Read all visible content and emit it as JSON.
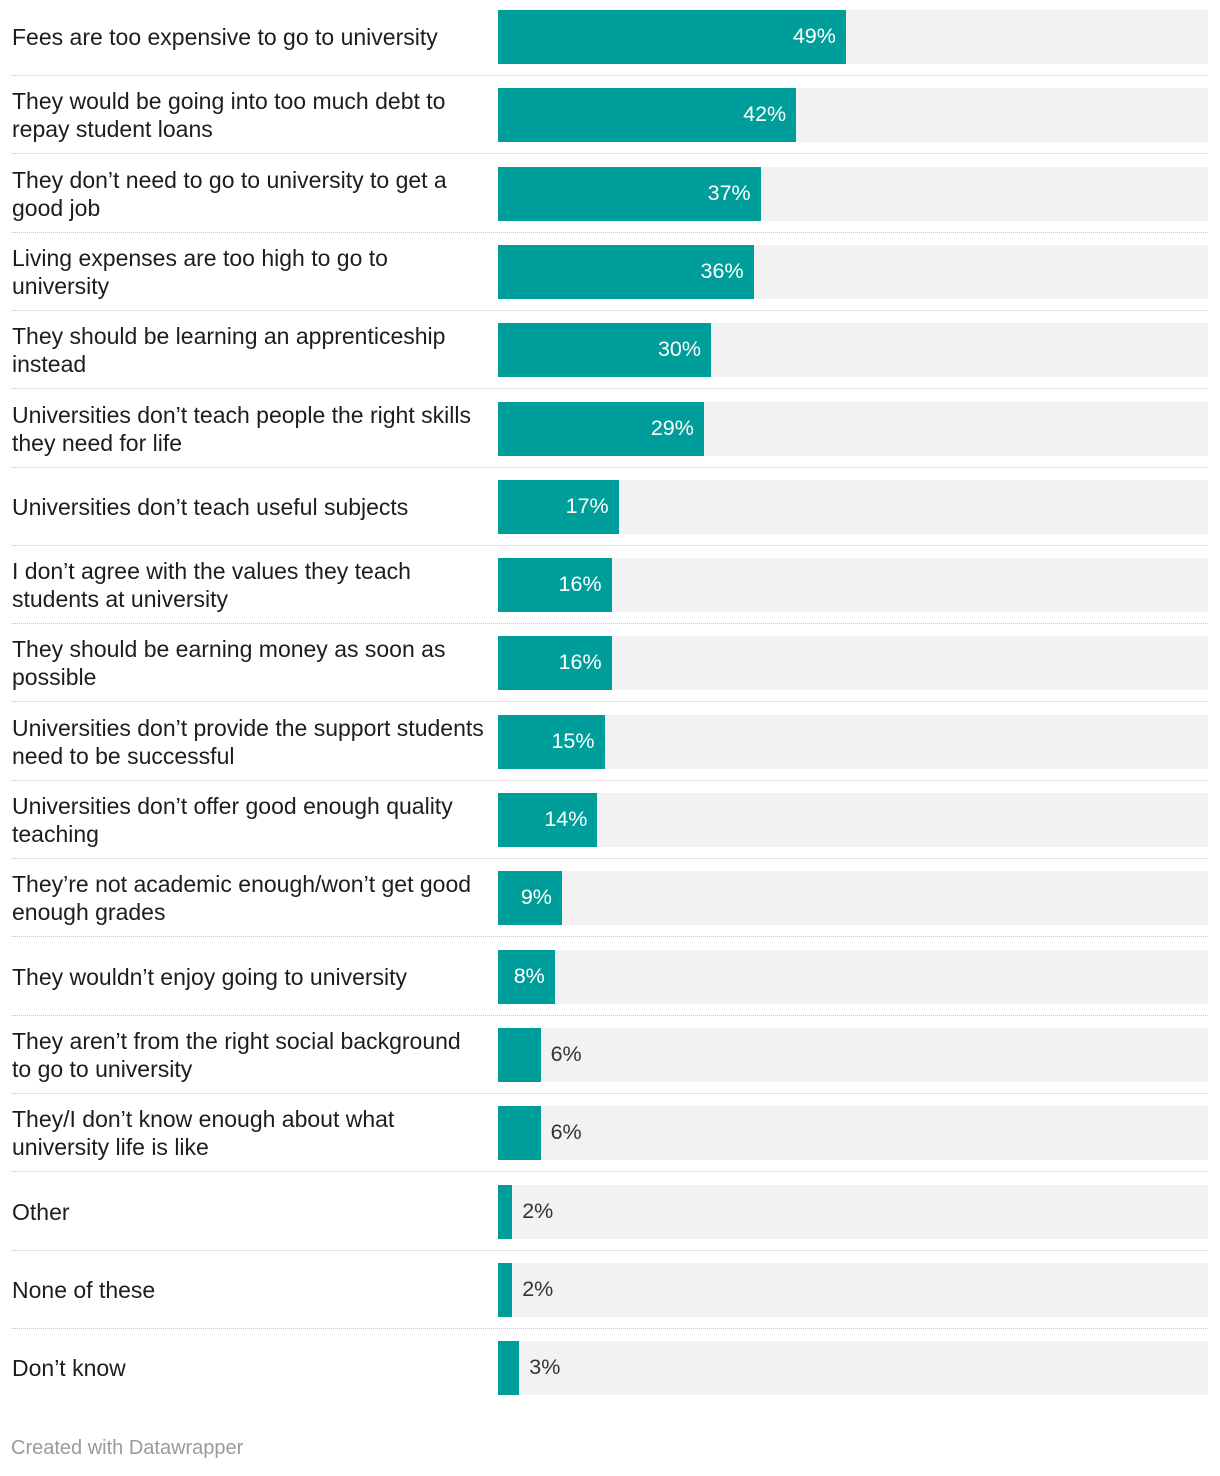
{
  "chart_data": {
    "type": "bar",
    "orientation": "horizontal",
    "categories": [
      "Fees are too expensive to go to university",
      "They would be going into too much debt to repay student loans",
      "They don’t need to go to university to get a good job",
      "Living expenses are too high to go to university",
      "They should be learning an apprenticeship instead",
      "Universities don’t teach people the right skills they need for life",
      "Universities don’t teach useful subjects",
      "I don’t agree with the values they teach students at university",
      "They should be earning money as soon as possible",
      "Universities don’t provide the support students need to be successful",
      "Universities don’t offer good enough quality teaching",
      "They’re not academic enough/won’t get good enough grades",
      "They wouldn’t enjoy going to university",
      "They aren’t from the right social background to go to university",
      "They/I don’t know enough about what university life is like",
      "Other",
      "None of these",
      "Don’t know"
    ],
    "values": [
      49,
      42,
      37,
      36,
      30,
      29,
      17,
      16,
      16,
      15,
      14,
      9,
      8,
      6,
      6,
      2,
      2,
      3
    ],
    "value_labels": [
      "49%",
      "42%",
      "37%",
      "36%",
      "30%",
      "29%",
      "17%",
      "16%",
      "16%",
      "15%",
      "14%",
      "9%",
      "8%",
      "6%",
      "6%",
      "2%",
      "2%",
      "3%"
    ],
    "xlim": [
      0,
      100
    ],
    "unit": "%",
    "bar_color": "#009e9a",
    "track_color": "#f2f2f2",
    "title": "",
    "xlabel": "",
    "ylabel": ""
  },
  "footer": {
    "credit": "Created with Datawrapper"
  }
}
